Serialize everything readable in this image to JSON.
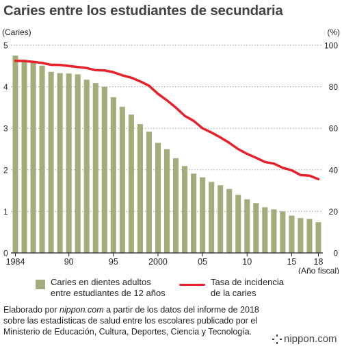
{
  "title": "Caries entre los estudiantes de secundaria",
  "logo_text": "nippon.com",
  "source": {
    "pre": "Elaborado por ",
    "site": "nippon.com",
    "post": " a partir de los datos del informe de 2018 sobre las estadísticas de salud entre los escolares publicado por el Ministerio de Educación, Cultura, Deportes, Ciencia y Tecnología."
  },
  "legend": {
    "bar_label_1": "Caries en dientes adultos",
    "bar_label_2": "entre estudiantes de 12 años",
    "line_label_1": "Tasa de incidencia",
    "line_label_2": "de la caries"
  },
  "colors": {
    "bar": "#a3ad7c",
    "line": "#e8202a",
    "axis": "#231f20",
    "grid": "#9a9a9a"
  },
  "chart_data": {
    "type": "bar",
    "left_axis_label": "(Caries)",
    "right_axis_label": "(%)",
    "xlabel": "(Año fiscal)",
    "ylim_left": [
      0,
      5
    ],
    "ylim_right": [
      0,
      100
    ],
    "left_ticks": [
      "0",
      "1",
      "2",
      "3",
      "4",
      "5"
    ],
    "right_ticks": [
      "0",
      "20",
      "40",
      "60",
      "80",
      "100"
    ],
    "x_tick_labels": [
      {
        "year": 1984,
        "label": "1984"
      },
      {
        "year": 1990,
        "label": "90"
      },
      {
        "year": 1995,
        "label": "95"
      },
      {
        "year": 2000,
        "label": "2000"
      },
      {
        "year": 2005,
        "label": "05"
      },
      {
        "year": 2010,
        "label": "10"
      },
      {
        "year": 2015,
        "label": "15"
      },
      {
        "year": 2018,
        "label": "18"
      }
    ],
    "x": [
      1984,
      1985,
      1986,
      1987,
      1988,
      1989,
      1990,
      1991,
      1992,
      1993,
      1994,
      1995,
      1996,
      1997,
      1998,
      1999,
      2000,
      2001,
      2002,
      2003,
      2004,
      2005,
      2006,
      2007,
      2008,
      2009,
      2010,
      2011,
      2012,
      2013,
      2014,
      2015,
      2016,
      2017,
      2018
    ],
    "series": [
      {
        "name": "Caries en dientes adultos entre estudiantes de 12 años",
        "type": "bar",
        "axis": "left",
        "values": [
          4.75,
          4.65,
          4.6,
          4.51,
          4.36,
          4.33,
          4.32,
          4.3,
          4.17,
          4.09,
          4.0,
          3.75,
          3.52,
          3.33,
          3.1,
          2.92,
          2.65,
          2.5,
          2.28,
          2.09,
          1.91,
          1.82,
          1.71,
          1.63,
          1.54,
          1.4,
          1.29,
          1.2,
          1.1,
          1.05,
          1.0,
          0.9,
          0.84,
          0.82,
          0.74
        ]
      },
      {
        "name": "Tasa de incidencia de la caries",
        "type": "line",
        "axis": "right",
        "values": [
          92.5,
          92.4,
          92.0,
          91.5,
          90.6,
          90.5,
          90.0,
          89.5,
          89.0,
          88.0,
          87.9,
          87.0,
          85.5,
          84.4,
          82.6,
          80.5,
          76.6,
          73.5,
          70.0,
          66.0,
          63.6,
          60.0,
          58.0,
          55.6,
          53.0,
          50.0,
          47.7,
          45.8,
          43.8,
          43.0,
          41.0,
          39.8,
          37.5,
          37.2,
          35.5
        ]
      }
    ]
  }
}
